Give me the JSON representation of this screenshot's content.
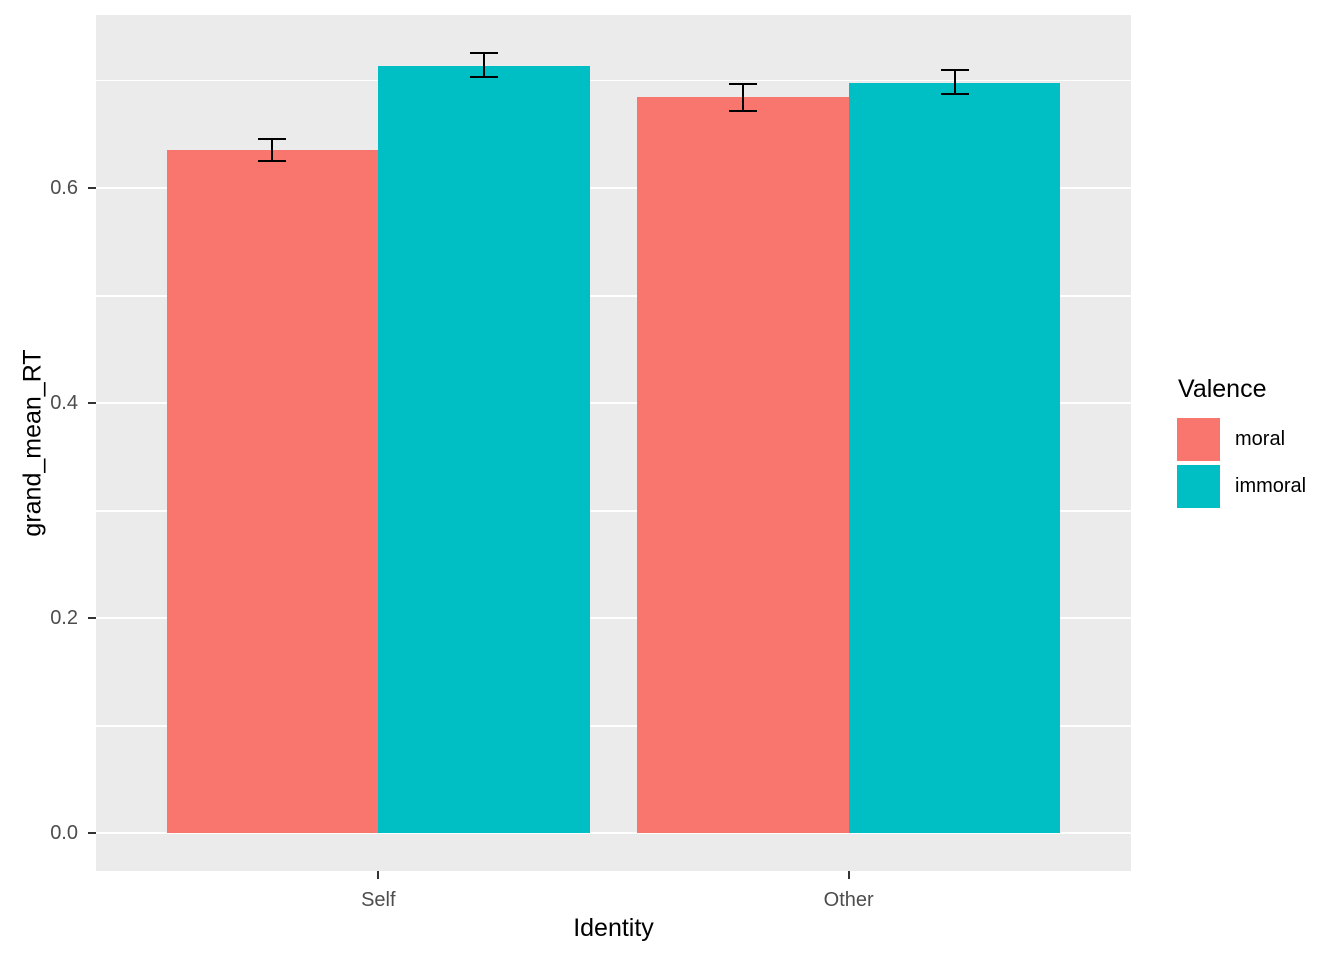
{
  "chart_data": {
    "type": "bar",
    "title": "",
    "xlabel": "Identity",
    "ylabel": "grand_mean_RT",
    "categories": [
      "Self",
      "Other"
    ],
    "series": [
      {
        "name": "moral",
        "color": "#F8766D",
        "values": [
          0.636,
          0.685
        ],
        "error_low": [
          0.625,
          0.672
        ],
        "error_high": [
          0.646,
          0.697
        ]
      },
      {
        "name": "immoral",
        "color": "#00BFC4",
        "values": [
          0.714,
          0.698
        ],
        "error_low": [
          0.703,
          0.688
        ],
        "error_high": [
          0.726,
          0.71
        ]
      }
    ],
    "y_ticks": [
      "0.0",
      "0.2",
      "0.4",
      "0.6"
    ],
    "y_tick_values": [
      0.0,
      0.2,
      0.4,
      0.6
    ],
    "y_minor_values": [
      0.1,
      0.3,
      0.5,
      0.7
    ],
    "ylim": [
      -0.0349,
      0.7611
    ],
    "grid": true,
    "panel_bg": "#EBEBEB",
    "grid_color": "#FFFFFF",
    "tick_mark_color": "#333333",
    "tick_label_color": "#4D4D4D",
    "legend": {
      "title": "Valence",
      "entries": [
        "moral",
        "immoral"
      ],
      "position": "right"
    }
  }
}
